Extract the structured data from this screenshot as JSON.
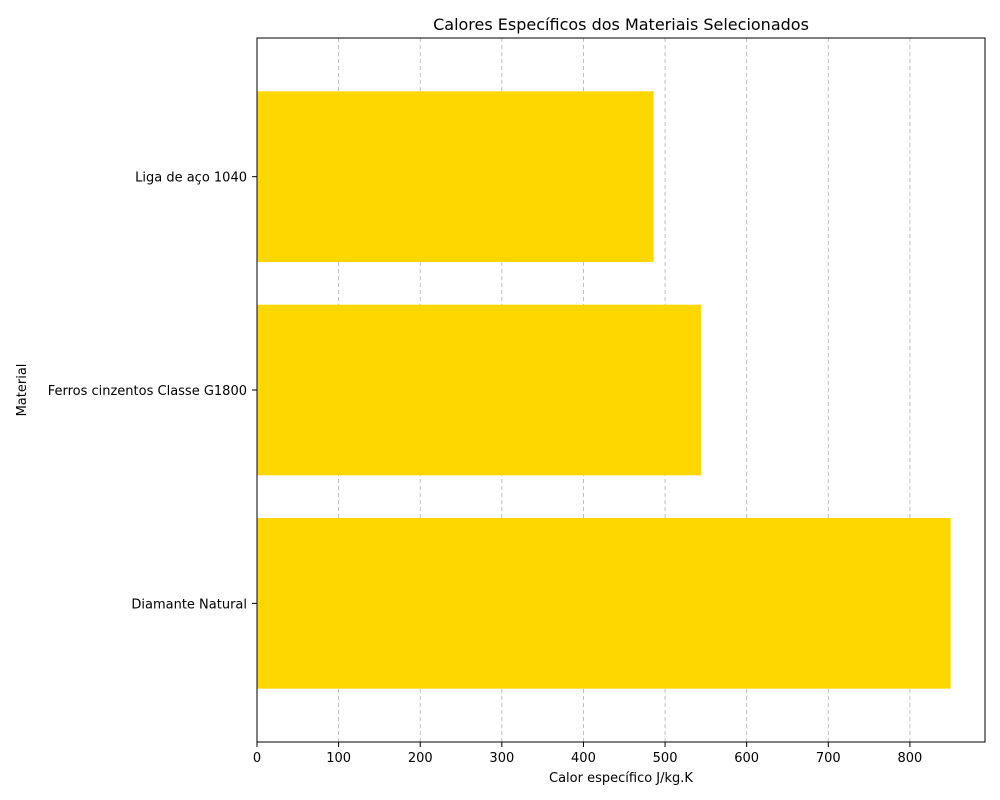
{
  "chart_data": {
    "type": "bar",
    "orientation": "horizontal",
    "title": "Calores Específicos dos Materiais Selecionados",
    "xlabel": "Calor específico J/kg.K",
    "ylabel": "Material",
    "categories": [
      "Diamante Natural",
      "Ferros cinzentos Classe G1800",
      "Liga de aço 1040"
    ],
    "values": [
      850,
      544,
      486
    ],
    "xlim": [
      0,
      892
    ],
    "xticks": [
      0,
      100,
      200,
      300,
      400,
      500,
      600,
      700,
      800
    ],
    "grid": "x-only, dashed",
    "legend": "none",
    "bar_color": "#FFD700"
  }
}
